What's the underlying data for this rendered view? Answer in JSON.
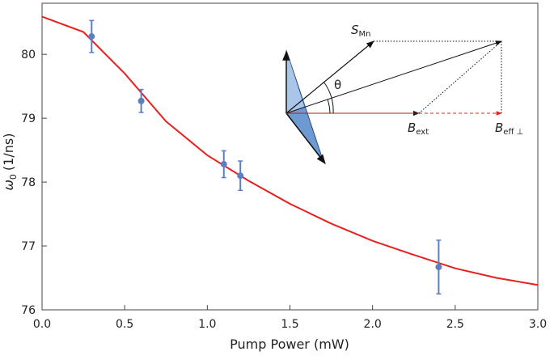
{
  "chart_data": {
    "type": "scatter",
    "xlabel": "Pump Power (mW)",
    "ylabel": "ω",
    "ylabel_sub": "0",
    "ylabel_unit": "(1/ns)",
    "xlim": [
      0,
      3.0
    ],
    "ylim": [
      76,
      80.8
    ],
    "xticks": [
      {
        "value": 0,
        "label": "0.0"
      },
      0.5,
      {
        "value": 1,
        "label": "1.0"
      },
      1.5,
      {
        "value": 2,
        "label": "2.0"
      },
      2.5,
      {
        "value": 3,
        "label": "3.0"
      }
    ],
    "yticks": [
      76,
      77,
      78,
      79,
      80
    ],
    "points": {
      "color": "#5b7fc0",
      "x": [
        0.3,
        0.6,
        1.1,
        1.2,
        2.4
      ],
      "values": [
        80.28,
        79.27,
        78.28,
        78.1,
        76.67
      ],
      "errors": [
        0.25,
        0.18,
        0.21,
        0.23,
        0.42
      ]
    },
    "fit": {
      "color": "#e8201f",
      "x": [
        0,
        0.25,
        0.5,
        0.75,
        1.0,
        1.25,
        1.5,
        1.75,
        2.0,
        2.25,
        2.5,
        2.75,
        3.0
      ],
      "values": [
        80.59,
        80.35,
        79.7,
        78.95,
        78.42,
        78.02,
        77.66,
        77.35,
        77.08,
        76.86,
        76.65,
        76.5,
        76.39
      ]
    },
    "annotations": {
      "s": "S",
      "s_sub": "Mn",
      "theta": "θ",
      "bext": "B",
      "bext_sub": "ext",
      "beff": "B",
      "beff_sub": "eff ⊥"
    }
  }
}
